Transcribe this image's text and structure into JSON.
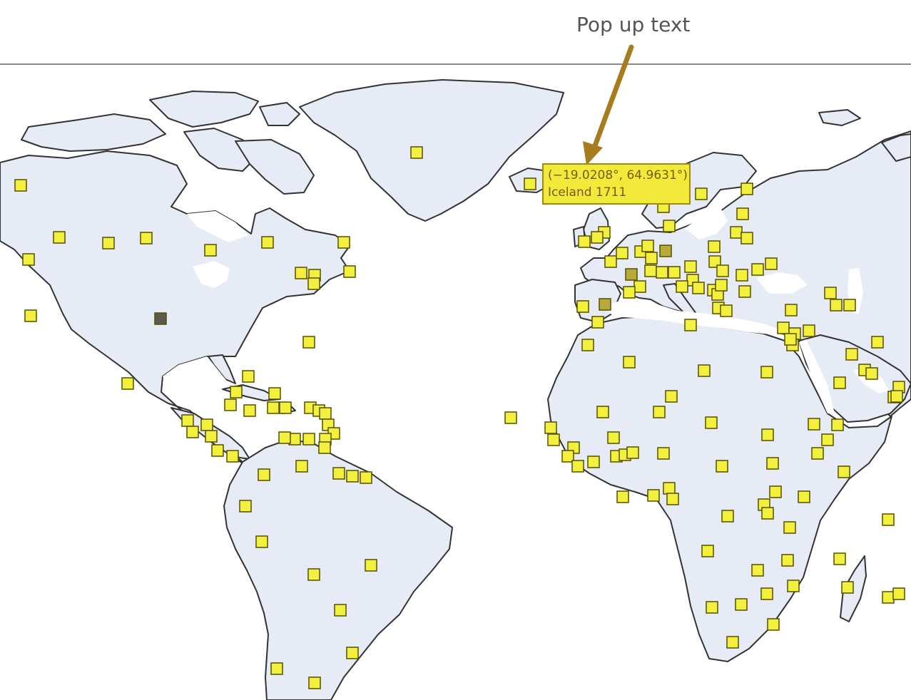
{
  "annotation": {
    "label": "Pop up text",
    "arrow_color": "#a67c1e"
  },
  "tooltip": {
    "coords": "(−19.0208°, 64.9631°)",
    "label": "Iceland 1711",
    "background": "#f2ea3b"
  },
  "map": {
    "land_color": "#e6ebf5",
    "border_color": "#333333",
    "marker_color": "#f2f03c",
    "selected_marker_color": "#5a5a50",
    "dim_marker_color": "#b5aa3a"
  }
}
